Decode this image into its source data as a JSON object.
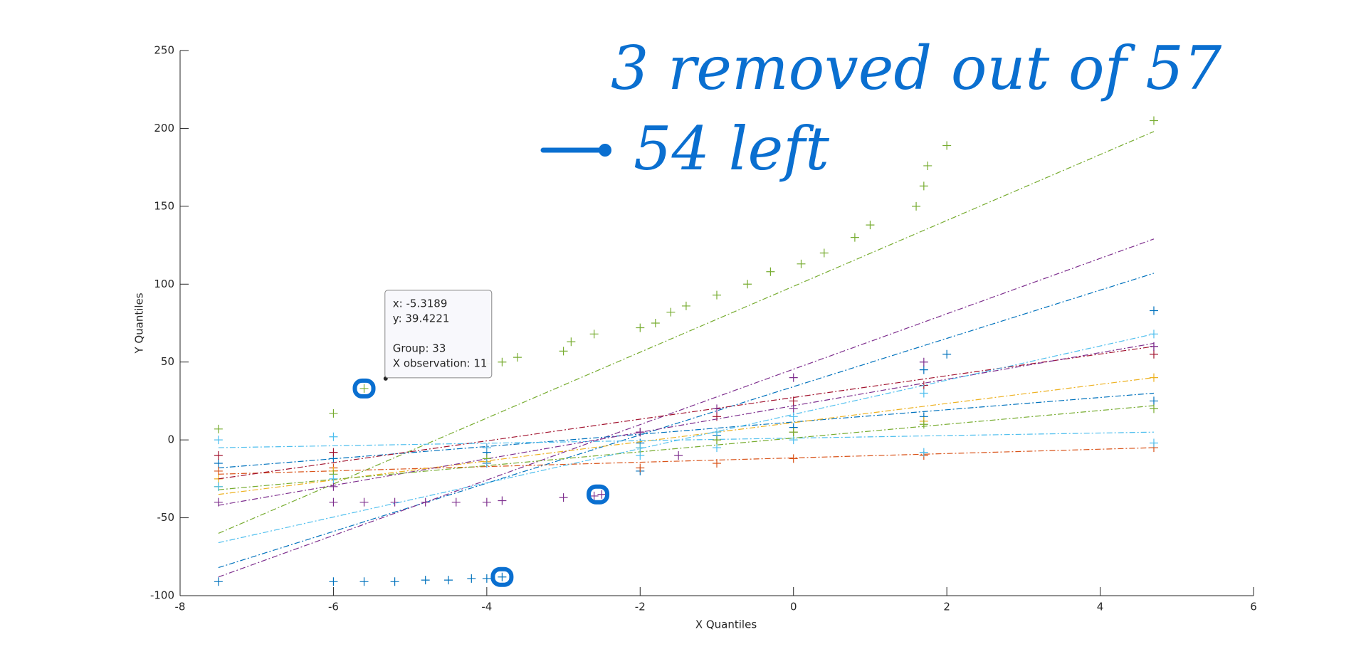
{
  "chart_data": {
    "type": "qqplot",
    "xlabel": "X Quantiles",
    "ylabel": "Y Quantiles",
    "xlim": [
      -8,
      6
    ],
    "ylim": [
      -100,
      250
    ],
    "xticks": [
      -8,
      -6,
      -4,
      -2,
      0,
      2,
      4,
      6
    ],
    "yticks": [
      -100,
      -50,
      0,
      50,
      100,
      150,
      200,
      250
    ],
    "grid": false,
    "fit_x": [
      -7.5,
      4.7
    ],
    "series": [
      {
        "color": "#77AC30",
        "x": [
          -7.5,
          -6,
          -5.6,
          -4,
          -3.8,
          -3.6,
          -3,
          -2.9,
          -2.6,
          -2,
          -1.8,
          -1.6,
          -1.4,
          -1,
          -0.6,
          -0.3,
          0.1,
          0.4,
          0.8,
          1,
          1.6,
          1.7,
          1.75,
          2,
          4.7
        ],
        "values": [
          7,
          17,
          33,
          49,
          50,
          53,
          57,
          63,
          68,
          72,
          75,
          82,
          86,
          93,
          100,
          108,
          113,
          120,
          130,
          138,
          150,
          163,
          176,
          189,
          205
        ],
        "fit": [
          -60,
          198
        ]
      },
      {
        "color": "#0072BD",
        "x": [
          -7.5,
          -6,
          -5.6,
          -5.2,
          -4.8,
          -4.5,
          -4.2,
          -4,
          -3.8,
          -2,
          0,
          1.7,
          2,
          4.7
        ],
        "values": [
          -91,
          -91,
          -91,
          -91,
          -90,
          -90,
          -89,
          -89,
          -88,
          -20,
          5,
          45,
          55,
          83
        ],
        "fit": [
          -82,
          107
        ]
      },
      {
        "color": "#7E2F8E",
        "x": [
          -6,
          -5.6,
          -5.2,
          -4.8,
          -4.4,
          -4,
          -3.8,
          -3,
          -2.6,
          -2.5,
          -1.5,
          0,
          4.7
        ],
        "values": [
          -40,
          -40,
          -40,
          -40,
          -40,
          -40,
          -39,
          -37,
          -36,
          -35,
          -10,
          20,
          60
        ],
        "fit": [
          -88,
          129
        ]
      },
      {
        "color": "#0072BD",
        "x": [
          -7.5,
          -6,
          -4,
          -2,
          -1,
          0,
          1.7,
          4.7
        ],
        "values": [
          -15,
          -12,
          -8,
          -2,
          3,
          8,
          15,
          25
        ],
        "fit": [
          -18,
          30
        ]
      },
      {
        "color": "#D95319",
        "x": [
          -7.5,
          -6,
          -4,
          -2,
          -1,
          0,
          1.7,
          4.7
        ],
        "values": [
          -20,
          -18,
          -15,
          -18,
          -15,
          -12,
          -10,
          -5
        ],
        "fit": [
          -22,
          -5
        ]
      },
      {
        "color": "#EDB120",
        "x": [
          -7.5,
          -6,
          -4,
          -2,
          -1,
          0,
          1.7,
          4.7
        ],
        "values": [
          -25,
          -20,
          -14,
          -5,
          0,
          5,
          12,
          40
        ],
        "fit": [
          -35,
          40
        ]
      },
      {
        "color": "#A2142F",
        "x": [
          -7.5,
          -6,
          -4,
          -2,
          -1,
          0,
          1.7,
          4.7
        ],
        "values": [
          -10,
          -8,
          -5,
          5,
          15,
          25,
          35,
          55
        ],
        "fit": [
          -25,
          60
        ]
      },
      {
        "color": "#4DBEEE",
        "x": [
          -7.5,
          -6,
          -4,
          -2,
          -1,
          0,
          1.7,
          4.7
        ],
        "values": [
          0,
          2,
          -5,
          -10,
          -5,
          0,
          -8,
          -2
        ],
        "fit": [
          -5,
          5
        ]
      },
      {
        "color": "#7E2F8E",
        "x": [
          -7.5,
          -6,
          -4,
          -2,
          -1,
          0,
          1.7,
          4.7
        ],
        "values": [
          -40,
          -30,
          -15,
          5,
          20,
          40,
          50,
          60
        ],
        "fit": [
          -42,
          62
        ]
      },
      {
        "color": "#77AC30",
        "x": [
          -7.5,
          -6,
          -4,
          -2,
          -1,
          0,
          1.7,
          4.7
        ],
        "values": [
          -30,
          -22,
          -12,
          -5,
          0,
          5,
          10,
          20
        ],
        "fit": [
          -32,
          22
        ]
      },
      {
        "color": "#4DBEEE",
        "x": [
          -7.5,
          -6,
          -4,
          -2,
          -1,
          0,
          1.7,
          4.7
        ],
        "values": [
          -30,
          -25,
          -15,
          -5,
          5,
          15,
          30,
          68
        ],
        "fit": [
          -66,
          68
        ]
      }
    ],
    "datatip": {
      "x": -5.3189,
      "y": 39.4221,
      "lines": [
        "x: -5.3189",
        "y: 39.4221",
        "Group: 33",
        "X observation: 11"
      ]
    },
    "annotations": [
      "3 removed out of 57",
      "54 left"
    ]
  }
}
